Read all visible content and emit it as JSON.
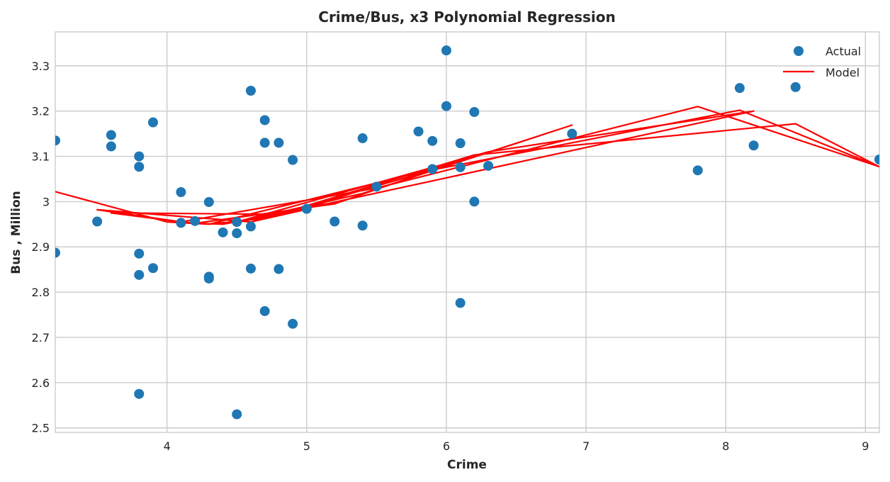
{
  "chart_data": {
    "type": "scatter",
    "title": "Crime/Bus, x3 Polynomial Regression",
    "xlabel": "Crime",
    "ylabel": "Bus , Million",
    "xlim": [
      3.2,
      9.1
    ],
    "ylim": [
      2.49,
      3.375
    ],
    "xticks": [
      4,
      5,
      6,
      7,
      8,
      9
    ],
    "yticks": [
      2.5,
      2.6,
      2.7,
      2.8,
      2.9,
      3,
      3.1,
      3.2,
      3.3
    ],
    "xtick_labels": [
      "4",
      "5",
      "6",
      "7",
      "8",
      "9"
    ],
    "ytick_labels": [
      "2.5",
      "2.6",
      "2.7",
      "2.8",
      "2.9",
      "3",
      "3.1",
      "3.2",
      "3.3"
    ],
    "grid": true,
    "legend_position": "top-right",
    "series": [
      {
        "name": "Actual",
        "kind": "scatter",
        "color": "#1f77b4",
        "x": [
          3.2,
          3.2,
          3.5,
          3.6,
          3.6,
          3.8,
          3.8,
          3.8,
          3.8,
          3.8,
          3.9,
          3.9,
          4.1,
          4.1,
          4.2,
          4.3,
          4.3,
          4.3,
          4.4,
          4.5,
          4.5,
          4.5,
          4.6,
          4.6,
          4.6,
          4.7,
          4.7,
          4.7,
          4.8,
          4.8,
          4.9,
          4.9,
          5.0,
          5.2,
          5.4,
          5.4,
          5.5,
          5.8,
          5.9,
          5.9,
          6.0,
          6.0,
          6.1,
          6.1,
          6.1,
          6.2,
          6.2,
          6.3,
          6.9,
          7.8,
          8.1,
          8.2,
          8.5,
          9.1
        ],
        "y": [
          3.135,
          2.887,
          2.956,
          3.147,
          3.122,
          3.1,
          3.077,
          2.885,
          2.838,
          2.575,
          3.175,
          2.853,
          3.021,
          2.953,
          2.957,
          2.999,
          2.834,
          2.83,
          2.932,
          2.955,
          2.93,
          2.53,
          3.245,
          2.945,
          2.852,
          3.18,
          3.13,
          2.758,
          3.13,
          2.851,
          3.092,
          2.73,
          2.984,
          2.956,
          3.14,
          2.947,
          3.033,
          3.155,
          3.134,
          3.072,
          3.334,
          3.211,
          3.129,
          3.076,
          2.776,
          3.198,
          3.0,
          3.079,
          3.15,
          3.069,
          3.251,
          3.124,
          3.253,
          3.093
        ]
      },
      {
        "name": "Model",
        "kind": "line",
        "color": "#ff0000",
        "x": [
          3.2,
          4.0,
          4.3,
          4.1,
          3.5,
          4.6,
          5.0,
          4.4,
          4.2,
          5.2,
          6.2,
          5.6,
          5.0,
          4.7,
          4.3,
          6.0,
          6.9,
          5.4,
          4.5,
          6.3,
          8.2,
          4.8,
          3.6,
          4.1,
          5.5,
          7.8,
          9.1,
          8.1,
          5.9,
          4.7,
          6.2,
          8.5,
          9.1
        ],
        "y": [
          3.022,
          2.955,
          2.95,
          2.955,
          2.982,
          2.955,
          2.983,
          2.95,
          2.952,
          2.995,
          3.102,
          3.047,
          2.985,
          2.963,
          2.95,
          3.079,
          3.169,
          3.018,
          2.955,
          3.11,
          3.2,
          2.972,
          2.975,
          2.955,
          3.03,
          3.21,
          3.077,
          3.202,
          3.07,
          2.963,
          3.103,
          3.172,
          3.077
        ]
      }
    ]
  }
}
